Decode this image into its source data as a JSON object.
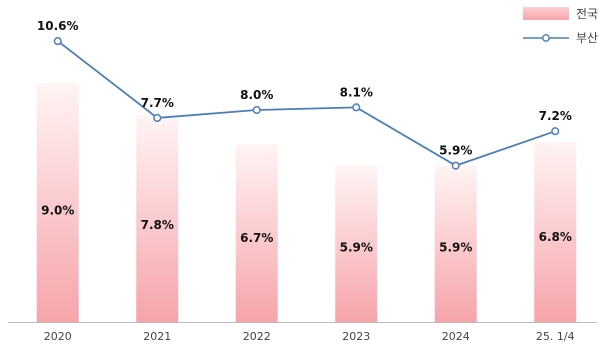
{
  "chart_data": {
    "type": "bar",
    "categories": [
      "2020",
      "2021",
      "2022",
      "2023",
      "2024",
      "25. 1/4"
    ],
    "series": [
      {
        "name": "전국",
        "type": "bar",
        "values": [
          9.0,
          7.8,
          6.7,
          5.9,
          5.9,
          6.8
        ],
        "labels": [
          "9.0%",
          "7.8%",
          "6.7%",
          "5.9%",
          "5.9%",
          "6.8%"
        ],
        "color": "#f4a3a8"
      },
      {
        "name": "부산",
        "type": "line",
        "values": [
          10.6,
          7.7,
          8.0,
          8.1,
          5.9,
          7.2
        ],
        "labels": [
          "10.6%",
          "7.7%",
          "8.0%",
          "8.1%",
          "5.9%",
          "7.2%"
        ],
        "color": "#4a7ebb"
      }
    ],
    "ylim": [
      0,
      12
    ],
    "grid": false,
    "legend": "top-right"
  }
}
